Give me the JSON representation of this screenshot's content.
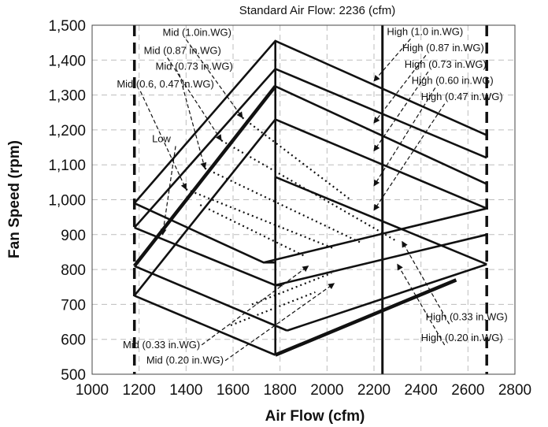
{
  "chart_data": {
    "type": "line",
    "title": "Standard Air Flow: 2236 (cfm)",
    "xlabel": "Air Flow (cfm)",
    "ylabel": "Fan Speed (rpm)",
    "xlim": [
      1000,
      2800
    ],
    "ylim": [
      500,
      1500
    ],
    "xticks": [
      1000,
      1200,
      1400,
      1600,
      1800,
      2000,
      2200,
      2400,
      2600,
      2800
    ],
    "yticks": [
      500,
      600,
      700,
      800,
      900,
      1000,
      1100,
      1200,
      1300,
      1400,
      1500
    ],
    "xtick_labels": [
      "1000",
      "1200",
      "1400",
      "1600",
      "1800",
      "2000",
      "2200",
      "2400",
      "2600",
      "2800"
    ],
    "ytick_labels": [
      "500",
      "600",
      "700",
      "800",
      "900",
      "1,000",
      "1,100",
      "1,200",
      "1,300",
      "1,400",
      "1,500"
    ],
    "grid": true,
    "reference_lines": [
      {
        "orientation": "vertical",
        "x": 1180,
        "style": "dashed"
      },
      {
        "orientation": "vertical",
        "x": 2236,
        "style": "solid"
      },
      {
        "orientation": "vertical",
        "x": 2680,
        "style": "dashed"
      }
    ],
    "series": [
      {
        "points": [
          [
            1180,
            990
          ],
          [
            1780,
            1455
          ],
          [
            2680,
            1185
          ]
        ],
        "emphasis": false
      },
      {
        "points": [
          [
            1180,
            920
          ],
          [
            1780,
            1375
          ],
          [
            2680,
            1120
          ]
        ],
        "emphasis": false
      },
      {
        "points": [
          [
            1180,
            810
          ],
          [
            1780,
            1325
          ]
        ],
        "emphasis": true
      },
      {
        "points": [
          [
            1780,
            1325
          ],
          [
            2680,
            1045
          ]
        ],
        "emphasis": false
      },
      {
        "points": [
          [
            1180,
            725
          ],
          [
            1780,
            1230
          ],
          [
            2680,
            975
          ]
        ],
        "emphasis": false
      },
      {
        "points": [
          [
            1180,
            990
          ],
          [
            1730,
            820
          ],
          [
            1780,
            820
          ]
        ],
        "emphasis": false
      },
      {
        "points": [
          [
            1180,
            920
          ],
          [
            1780,
            755
          ],
          [
            1810,
            755
          ]
        ],
        "emphasis": false
      },
      {
        "points": [
          [
            1180,
            810
          ],
          [
            1830,
            625
          ],
          [
            1830,
            625
          ]
        ],
        "emphasis": false
      },
      {
        "points": [
          [
            1180,
            725
          ],
          [
            1780,
            555
          ]
        ],
        "emphasis": false
      },
      {
        "points": [
          [
            1780,
            555
          ],
          [
            2550,
            770
          ]
        ],
        "emphasis": true
      },
      {
        "points": [
          [
            1830,
            625
          ],
          [
            2680,
            815
          ]
        ],
        "emphasis": false
      },
      {
        "points": [
          [
            1780,
            755
          ],
          [
            2680,
            900
          ]
        ],
        "emphasis": false
      },
      {
        "points": [
          [
            1730,
            820
          ],
          [
            2680,
            975
          ]
        ],
        "emphasis": false
      },
      {
        "points": [
          [
            1780,
            1065
          ],
          [
            1780,
            820
          ]
        ],
        "emphasis": false
      },
      {
        "points": [
          [
            1780,
            1065
          ],
          [
            2680,
            815
          ]
        ],
        "emphasis": false
      },
      {
        "points": [
          [
            1780,
            1455
          ],
          [
            1780,
            555
          ]
        ],
        "emphasis": false
      }
    ],
    "dotted_series": [
      {
        "points": [
          [
            1640,
            1235
          ],
          [
            2100,
            1000
          ]
        ]
      },
      {
        "points": [
          [
            1550,
            1170
          ],
          [
            2300,
            880
          ]
        ]
      },
      {
        "points": [
          [
            1480,
            1090
          ],
          [
            2150,
            875
          ]
        ]
      },
      {
        "points": [
          [
            1400,
            1030
          ],
          [
            2030,
            860
          ]
        ]
      },
      {
        "points": [
          [
            1460,
            985
          ],
          [
            1900,
            840
          ]
        ]
      },
      {
        "points": [
          [
            1680,
            700
          ],
          [
            2020,
            790
          ]
        ]
      },
      {
        "points": [
          [
            1590,
            640
          ],
          [
            1950,
            735
          ]
        ]
      }
    ],
    "annotations": [
      {
        "text": "Mid (1.0in.WG)",
        "tx": 1300,
        "ty": 1470,
        "ax": 1640,
        "ay": 1235,
        "align": "start"
      },
      {
        "text": "Mid (0.87 in.WG)",
        "tx": 1220,
        "ty": 1418,
        "ax": 1550,
        "ay": 1170,
        "align": "start"
      },
      {
        "text": "Mid (0.73 in.WG)",
        "tx": 1270,
        "ty": 1372,
        "ax": 1480,
        "ay": 1090,
        "align": "start"
      },
      {
        "text": "Mid (0.6, 0.47 in.WG)",
        "tx": 1105,
        "ty": 1322,
        "ax": 1400,
        "ay": 1030,
        "align": "start"
      },
      {
        "text": "Low",
        "tx": 1255,
        "ty": 1165,
        "ax": 1300,
        "ay": 900,
        "align": "start"
      },
      {
        "text": "High (1.0 in.WG)",
        "tx": 2255,
        "ty": 1472,
        "ax": 2200,
        "ay": 1340,
        "align": "start"
      },
      {
        "text": "High (0.87 in.WG)",
        "tx": 2320,
        "ty": 1425,
        "ax": 2200,
        "ay": 1220,
        "align": "start"
      },
      {
        "text": "High (0.73 in.WG)",
        "tx": 2330,
        "ty": 1378,
        "ax": 2200,
        "ay": 1140,
        "align": "start"
      },
      {
        "text": "High (0.60 in.WG)",
        "tx": 2360,
        "ty": 1332,
        "ax": 2200,
        "ay": 1040,
        "align": "start"
      },
      {
        "text": "High (0.47 in.WG)",
        "tx": 2400,
        "ty": 1286,
        "ax": 2200,
        "ay": 970,
        "align": "start"
      },
      {
        "text": "High (0.33 in.WG)",
        "tx": 2420,
        "ty": 655,
        "ax": 2320,
        "ay": 880,
        "align": "start"
      },
      {
        "text": "High (0.20 in.WG)",
        "tx": 2400,
        "ty": 595,
        "ax": 2300,
        "ay": 815,
        "align": "start"
      },
      {
        "text": "Mid (0.33 in.WG)",
        "tx": 1460,
        "ty": 575,
        "ax": 1920,
        "ay": 810,
        "align": "end"
      },
      {
        "text": "Mid (0.20 in.WG)",
        "tx": 1560,
        "ty": 530,
        "ax": 2030,
        "ay": 760,
        "align": "end"
      }
    ]
  }
}
